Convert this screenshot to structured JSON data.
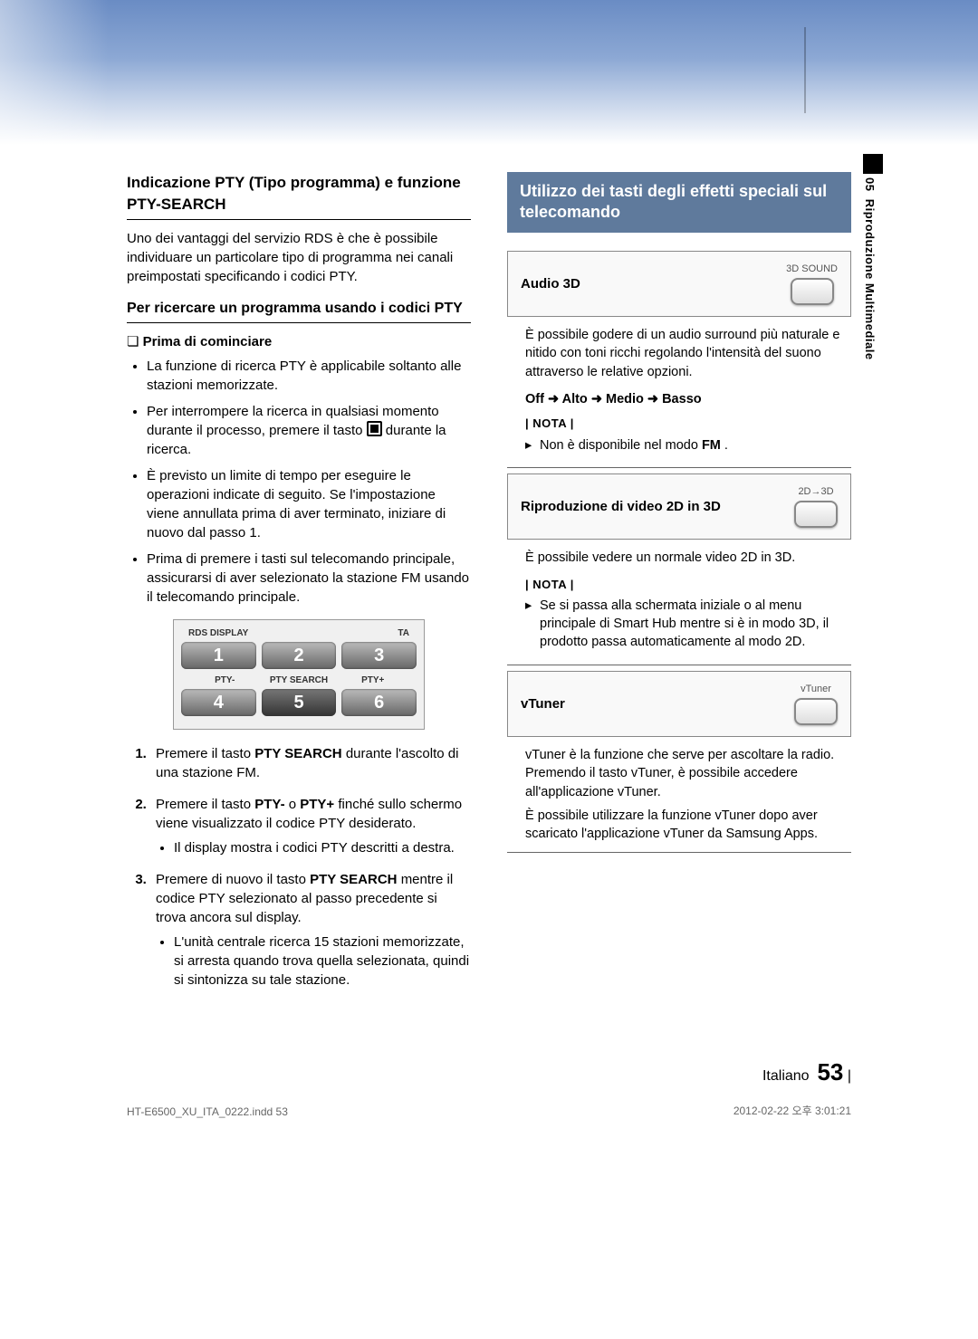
{
  "sideTab": {
    "chapter": "05",
    "title": "Riproduzione Multimediale"
  },
  "left": {
    "h1": "Indicazione PTY (Tipo programma) e funzione PTY-SEARCH",
    "intro": "Uno dei vantaggi del servizio RDS è che è possibile individuare un particolare tipo di programma nei canali preimpostati specificando i codici PTY.",
    "h2": "Per ricercare un programma usando i codici PTY",
    "sub": "Prima di cominciare",
    "bullets": {
      "b1": "La funzione di ricerca PTY è applicabile soltanto alle stazioni memorizzate.",
      "b2a": "Per interrompere la ricerca in qualsiasi momento durante il processo, premere il tasto ",
      "b2b": " durante la ricerca.",
      "b3": "È previsto un limite di tempo per eseguire le operazioni indicate di seguito. Se l'impostazione viene annullata prima di aver terminato, iniziare di nuovo dal passo 1.",
      "b4": "Prima di premere i tasti sul telecomando principale, assicurarsi di aver selezionato la stazione FM usando il telecomando principale."
    },
    "remote": {
      "r1l": "RDS DISPLAY",
      "r1r": "TA",
      "b1": "1",
      "b2": "2",
      "b3": "3",
      "r2l": "PTY-",
      "r2m": "PTY SEARCH",
      "r2r": "PTY+",
      "b4": "4",
      "b5": "5",
      "b6": "6"
    },
    "steps": {
      "s1a": "Premere il tasto ",
      "s1b": "PTY SEARCH",
      "s1c": " durante l'ascolto di una stazione FM.",
      "s2a": "Premere il tasto ",
      "s2b": "PTY-",
      "s2c": " o ",
      "s2d": "PTY+",
      "s2e": " finché sullo schermo viene visualizzato il codice PTY desiderato.",
      "s2sub": "Il display mostra i codici PTY descritti a destra.",
      "s3a": "Premere di nuovo il tasto ",
      "s3b": "PTY SEARCH",
      "s3c": " mentre il codice PTY selezionato al passo precedente si trova ancora sul display.",
      "s3sub": "L'unità centrale ricerca 15 stazioni memorizzate, si arresta quando trova quella selezionata, quindi si sintonizza su tale stazione."
    }
  },
  "right": {
    "banner": "Utilizzo dei tasti degli effetti speciali sul telecomando",
    "f1": {
      "label": "Audio 3D",
      "keytop": "3D SOUND",
      "desc": "È possibile godere di un audio surround più naturale e nitido con toni ricchi regolando l'intensità del suono attraverso le relative opzioni.",
      "options": "Off ➜ Alto ➜ Medio ➜ Basso",
      "nota": "| NOTA |",
      "note1a": "Non è disponibile nel modo ",
      "note1b": "FM",
      "note1c": "."
    },
    "f2": {
      "label": "Riproduzione di video 2D in 3D",
      "keytop": "2D→3D",
      "desc": "È possibile vedere un normale video 2D in 3D.",
      "nota": "| NOTA |",
      "note1": "Se si passa alla schermata iniziale o al menu principale di Smart Hub mentre si è in modo 3D, il prodotto passa automaticamente al modo 2D."
    },
    "f3": {
      "label": "vTuner",
      "keytop": "vTuner",
      "desc1": "vTuner è la funzione che serve per ascoltare la radio. Premendo il tasto vTuner, è possibile accedere all'applicazione vTuner.",
      "desc2": "È possibile utilizzare la funzione vTuner dopo aver scaricato l'applicazione vTuner da Samsung Apps."
    }
  },
  "footer": {
    "langLabel": "Italiano",
    "pageNum": "53",
    "file": "HT-E6500_XU_ITA_0222.indd   53",
    "timestamp": "2012-02-22   오후 3:01:21"
  }
}
